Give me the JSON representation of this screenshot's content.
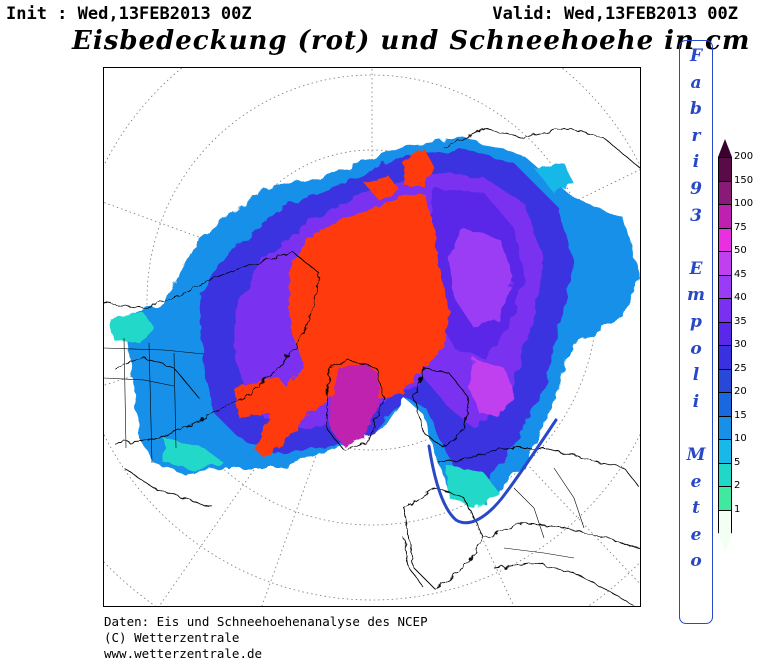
{
  "header": {
    "init": "Init : Wed,13FEB2013 00Z",
    "valid": "Valid: Wed,13FEB2013 00Z",
    "title": "Eisbedeckung (rot) und Schneehoehe in cm"
  },
  "footer": {
    "line1": "Daten: Eis und Schneehoehenanalyse des NCEP",
    "line2": "(C) Wetterzentrale",
    "line3": "www.wetterzentrale.de"
  },
  "signature": {
    "text": "Fabri93 Empoli Meteo",
    "letters": [
      "F",
      "a",
      "b",
      "r",
      "i",
      "9",
      "3",
      "",
      "E",
      "m",
      "p",
      "o",
      "l",
      "i",
      "",
      "M",
      "e",
      "t",
      "e",
      "o"
    ],
    "color": "#2848c8"
  },
  "legend": {
    "levels": [
      "200",
      "150",
      "100",
      "75",
      "50",
      "45",
      "40",
      "35",
      "30",
      "25",
      "20",
      "15",
      "10",
      "5",
      "2",
      "1"
    ],
    "colors": [
      "#5a0a46",
      "#8a1a78",
      "#c020b0",
      "#e830e0",
      "#c040f0",
      "#9a3cf5",
      "#7a30f0",
      "#5a28e8",
      "#3a30e0",
      "#2848d8",
      "#1a68e0",
      "#1890e8",
      "#18b8e8",
      "#20d8c8",
      "#40e8a0",
      "#f4fff4"
    ],
    "top_triangle_color": "#3a0030"
  },
  "map": {
    "ice_color": "#ff3a10",
    "land_outline_color": "#000000",
    "grid_color": "#777777",
    "annotation_color": "#2848c8"
  }
}
